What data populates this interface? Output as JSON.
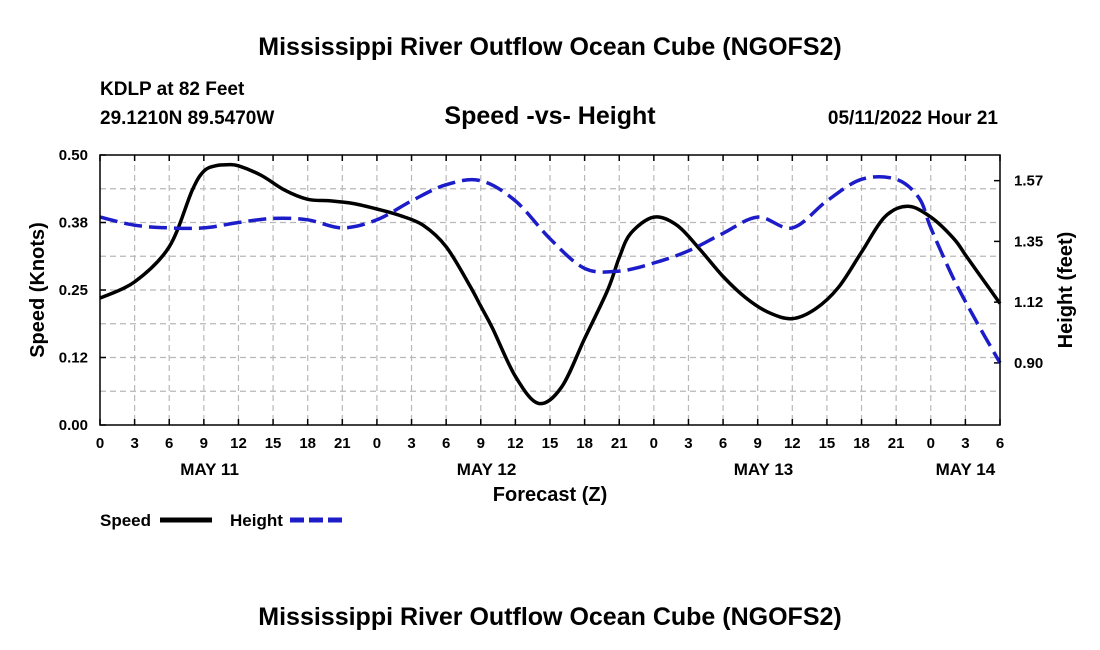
{
  "chart_data": {
    "type": "line",
    "title": "Mississippi River Outflow Ocean Cube (NGOFS2)",
    "repeated_title": "Mississippi River Outflow Ocean Cube (NGOFS2)",
    "subtitle": "Speed -vs- Height",
    "station": "KDLP at 82 Feet",
    "location": "29.1210N  89.5470W",
    "timestamp": "05/11/2022 Hour 21",
    "xlabel": "Forecast (Z)",
    "ylabel_left": "Speed (Knots)",
    "ylabel_right": "Height (feet)",
    "x_range_hours": [
      0,
      78
    ],
    "x_tick_hours": [
      0,
      3,
      6,
      9,
      12,
      15,
      18,
      21,
      24,
      27,
      30,
      33,
      36,
      39,
      42,
      45,
      48,
      51,
      54,
      57,
      60,
      63,
      66,
      69,
      72,
      75,
      78
    ],
    "x_tick_labels": [
      "0",
      "3",
      "6",
      "9",
      "12",
      "15",
      "18",
      "21",
      "0",
      "3",
      "6",
      "9",
      "12",
      "15",
      "18",
      "21",
      "0",
      "3",
      "6",
      "9",
      "12",
      "15",
      "18",
      "21",
      "0",
      "3",
      "6"
    ],
    "date_labels": [
      {
        "label": "MAY 11",
        "hour": 9.5
      },
      {
        "label": "MAY 12",
        "hour": 33.5
      },
      {
        "label": "MAY 13",
        "hour": 57.5
      },
      {
        "label": "MAY 14",
        "hour": 75
      }
    ],
    "y_left_range": [
      0,
      0.5
    ],
    "y_left_ticks": [
      0,
      0.125,
      0.25,
      0.375,
      0.5
    ],
    "y_left_tick_labels": [
      "0.00",
      "0.12",
      "0.25",
      "0.38",
      "0.50"
    ],
    "y_right_range": [
      0.67,
      1.67
    ],
    "y_right_ticks": [
      0.9,
      1.125,
      1.35,
      1.575
    ],
    "y_right_tick_labels": [
      "0.90",
      "1.12",
      "1.35",
      "1.57"
    ],
    "grid": true,
    "legend_position": "bottom-left",
    "series": [
      {
        "name": "Speed",
        "axis": "left",
        "color": "#000000",
        "dash": "solid",
        "x": [
          0,
          3,
          6,
          8,
          9,
          10,
          11,
          12,
          14,
          16,
          18,
          20,
          22,
          24,
          26,
          28,
          30,
          32,
          33,
          34,
          36,
          38,
          40,
          42,
          44,
          45,
          46,
          48,
          50,
          52,
          54,
          56,
          58,
          60,
          62,
          64,
          66,
          68,
          70,
          72,
          74,
          75,
          76,
          78
        ],
        "values": [
          0.235,
          0.265,
          0.33,
          0.435,
          0.47,
          0.48,
          0.482,
          0.48,
          0.462,
          0.435,
          0.418,
          0.415,
          0.41,
          0.4,
          0.388,
          0.37,
          0.33,
          0.26,
          0.22,
          0.18,
          0.09,
          0.04,
          0.07,
          0.16,
          0.25,
          0.31,
          0.355,
          0.385,
          0.37,
          0.325,
          0.275,
          0.235,
          0.208,
          0.197,
          0.215,
          0.255,
          0.32,
          0.385,
          0.405,
          0.385,
          0.345,
          0.315,
          0.285,
          0.225
        ]
      },
      {
        "name": "Height",
        "axis": "right",
        "color": "#1c1cc8",
        "dash": "dashed",
        "x": [
          0,
          3,
          6,
          9,
          12,
          15,
          18,
          21,
          24,
          27,
          30,
          33,
          36,
          39,
          42,
          45,
          48,
          51,
          54,
          57,
          60,
          63,
          66,
          69,
          71,
          72,
          74,
          76,
          78
        ],
        "values": [
          1.44,
          1.41,
          1.4,
          1.4,
          1.42,
          1.435,
          1.43,
          1.4,
          1.43,
          1.5,
          1.56,
          1.575,
          1.5,
          1.36,
          1.25,
          1.24,
          1.27,
          1.315,
          1.38,
          1.44,
          1.4,
          1.5,
          1.58,
          1.58,
          1.51,
          1.4,
          1.21,
          1.05,
          0.9
        ]
      }
    ]
  }
}
